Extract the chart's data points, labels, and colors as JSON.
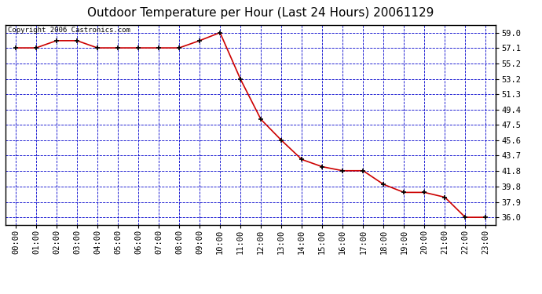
{
  "title": "Outdoor Temperature per Hour (Last 24 Hours) 20061129",
  "copyright_text": "Copyright 2006 Castronics.com",
  "hours": [
    0,
    1,
    2,
    3,
    4,
    5,
    6,
    7,
    8,
    9,
    10,
    11,
    12,
    13,
    14,
    15,
    16,
    17,
    18,
    19,
    20,
    21,
    22,
    23
  ],
  "x_labels": [
    "00:00",
    "01:00",
    "02:00",
    "03:00",
    "04:00",
    "05:00",
    "06:00",
    "07:00",
    "08:00",
    "09:00",
    "10:00",
    "11:00",
    "12:00",
    "13:00",
    "14:00",
    "15:00",
    "16:00",
    "17:00",
    "18:00",
    "19:00",
    "20:00",
    "21:00",
    "22:00",
    "23:00"
  ],
  "temps": [
    57.1,
    57.1,
    58.0,
    58.0,
    57.1,
    57.1,
    57.1,
    57.1,
    57.1,
    58.0,
    59.0,
    53.2,
    48.2,
    45.6,
    43.2,
    42.3,
    41.8,
    41.8,
    40.1,
    39.1,
    39.1,
    38.5,
    36.0,
    36.0
  ],
  "y_ticks": [
    36.0,
    37.9,
    39.8,
    41.8,
    43.7,
    45.6,
    47.5,
    49.4,
    51.3,
    53.2,
    55.2,
    57.1,
    59.0
  ],
  "y_min": 35.05,
  "y_max": 59.95,
  "line_color": "#cc0000",
  "marker_color": "#000000",
  "bg_color": "#ffffff",
  "plot_bg_color": "#ffffff",
  "grid_color": "#0000cc",
  "border_color": "#000000",
  "title_fontsize": 11,
  "copyright_fontsize": 6.5,
  "tick_fontsize": 7.5,
  "y_tick_labels": [
    "36.0",
    "37.9",
    "39.8",
    "41.8",
    "43.7",
    "45.6",
    "47.5",
    "49.4",
    "51.3",
    "53.2",
    "55.2",
    "57.1",
    "59.0"
  ]
}
